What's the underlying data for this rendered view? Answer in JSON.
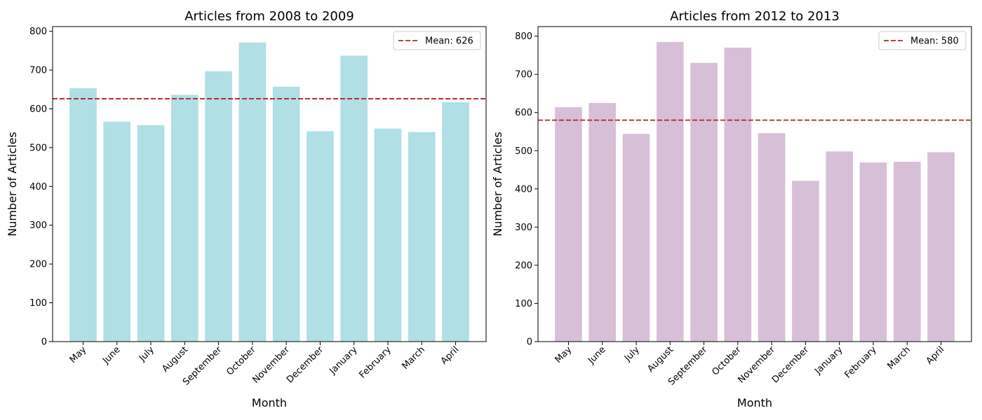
{
  "chart_data": [
    {
      "type": "bar",
      "title": "Articles from 2008 to 2009",
      "xlabel": "Month",
      "ylabel": "Number of Articles",
      "categories": [
        "May",
        "June",
        "July",
        "August",
        "September",
        "October",
        "November",
        "December",
        "January",
        "February",
        "March",
        "April"
      ],
      "values": [
        653,
        567,
        558,
        636,
        697,
        771,
        657,
        542,
        737,
        549,
        540,
        617
      ],
      "ylim": [
        0,
        812
      ],
      "yticks": [
        0,
        100,
        200,
        300,
        400,
        500,
        600,
        700,
        800
      ],
      "mean": 626,
      "mean_label": "Mean: 626",
      "bar_color": "#b0dfe5",
      "mean_color": "#b22222",
      "legend": "top-right",
      "grid": false
    },
    {
      "type": "bar",
      "title": "Articles from 2012 to 2013",
      "xlabel": "Month",
      "ylabel": "Number of Articles",
      "categories": [
        "May",
        "June",
        "July",
        "August",
        "September",
        "October",
        "November",
        "December",
        "January",
        "February",
        "March",
        "April"
      ],
      "values": [
        614,
        625,
        544,
        785,
        730,
        770,
        546,
        421,
        498,
        469,
        471,
        496
      ],
      "ylim": [
        0,
        825
      ],
      "yticks": [
        0,
        100,
        200,
        300,
        400,
        500,
        600,
        700,
        800
      ],
      "mean": 580,
      "mean_label": "Mean: 580",
      "bar_color": "#d8bfd8",
      "mean_color": "#b22222",
      "legend": "top-right",
      "grid": false
    }
  ]
}
